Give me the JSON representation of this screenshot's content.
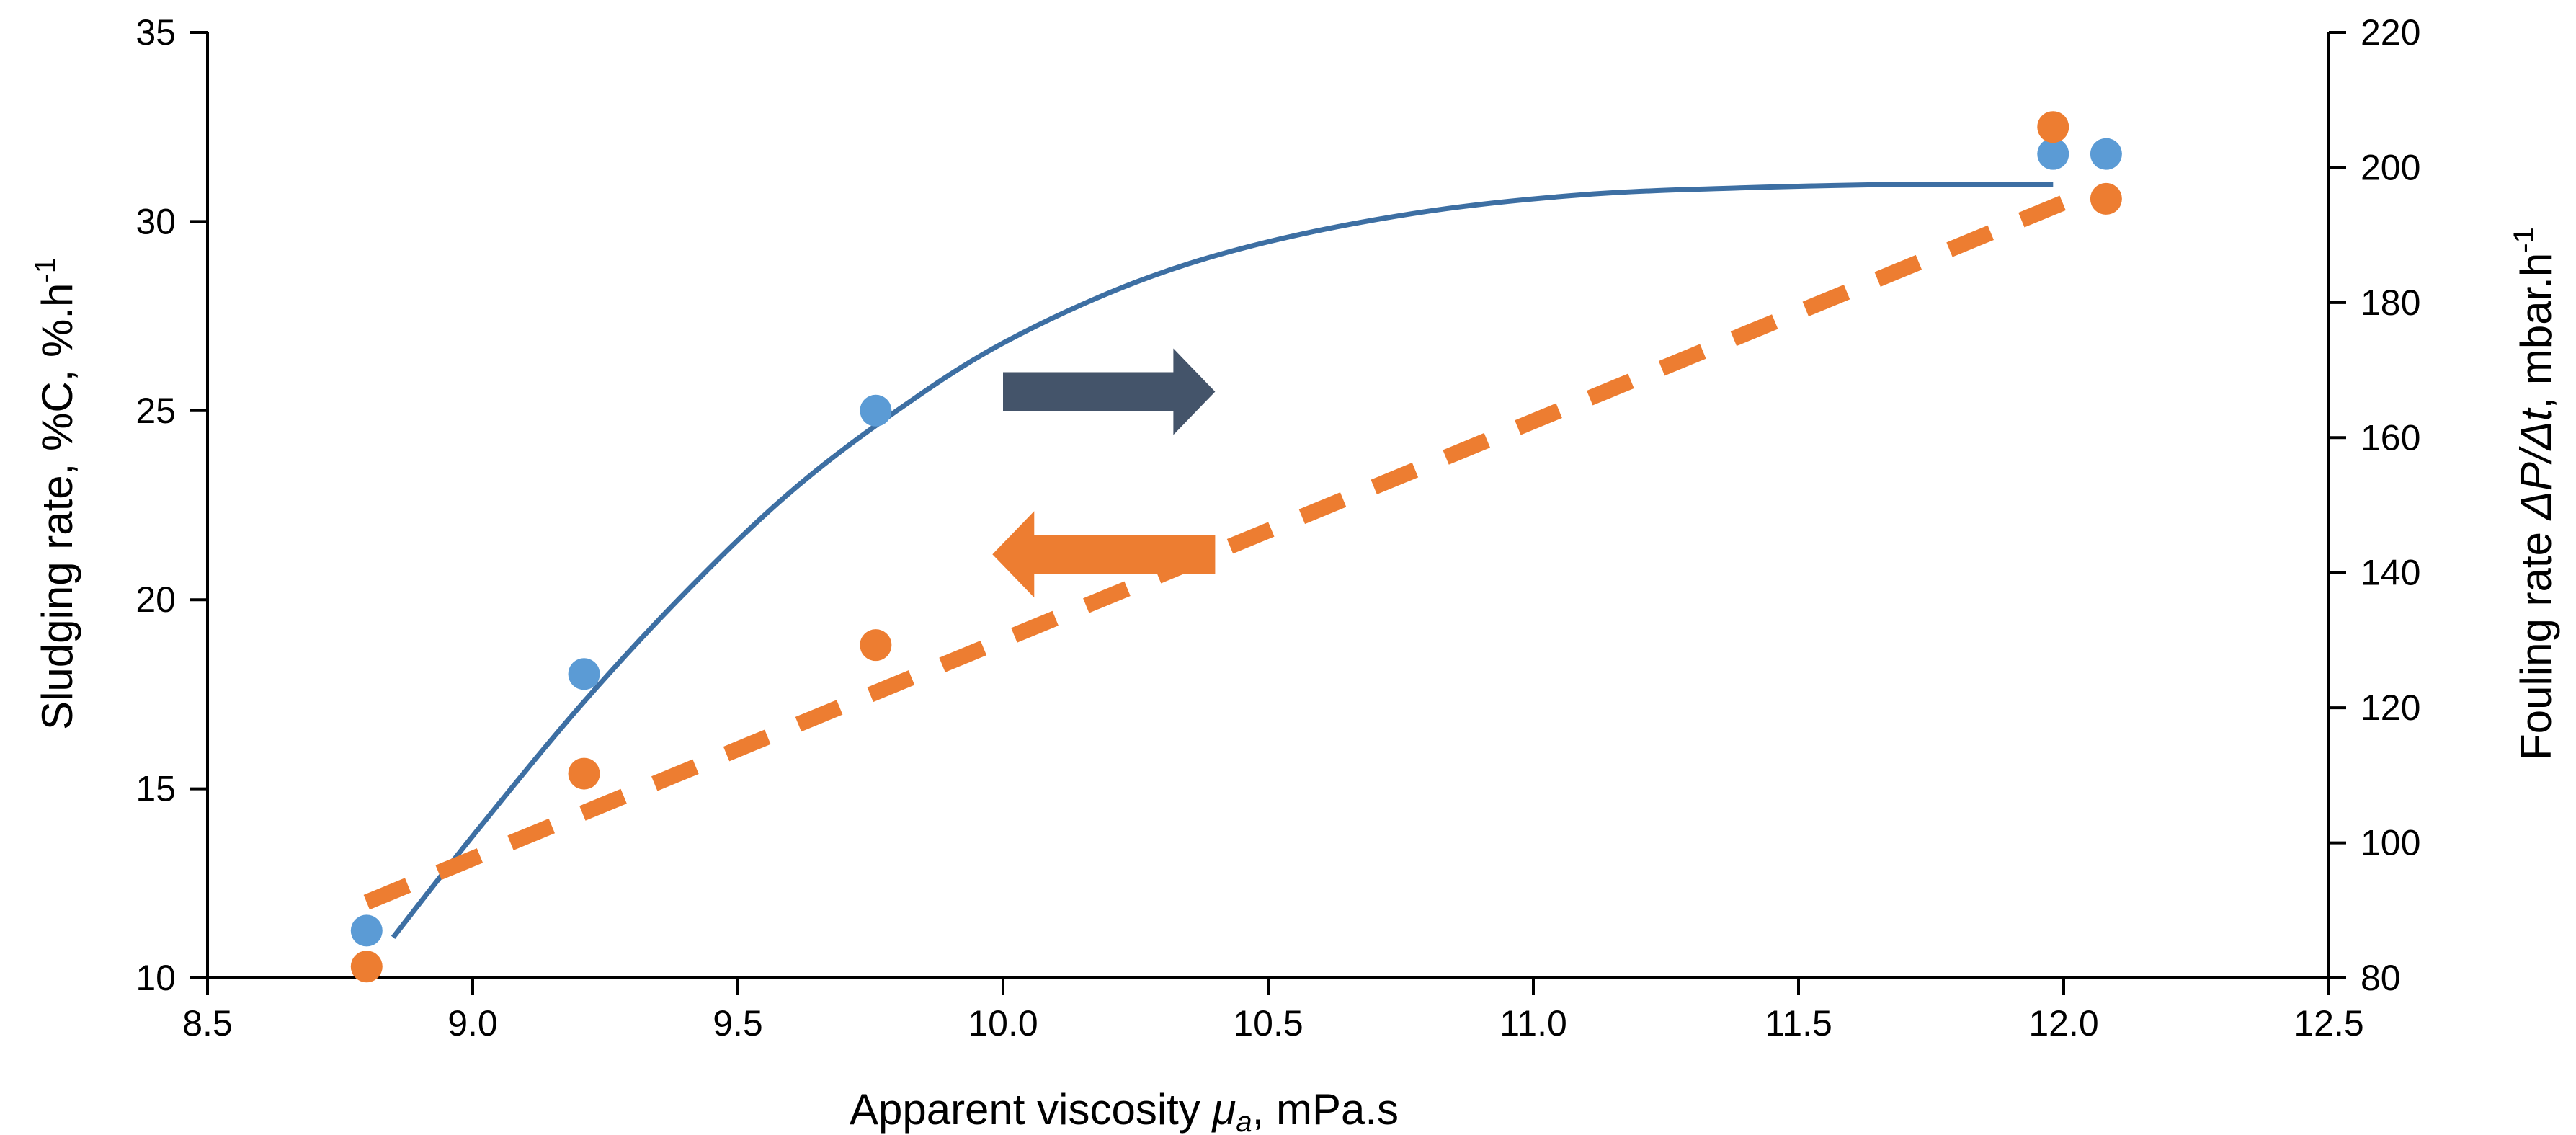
{
  "chart_data": {
    "type": "scatter",
    "title": "",
    "xlabel": {
      "prefix": "Apparent viscosity ",
      "symbol": "μ",
      "subscript": "a",
      "suffix": ", mPa.s"
    },
    "ylabel_left": {
      "text": "Sludging rate, %C, %.h",
      "superscript": "-1"
    },
    "ylabel_right": {
      "prefix": "Fouling rate ",
      "symbol": "ΔP/Δt",
      "suffix": ", mbar.h",
      "superscript": "-1"
    },
    "xlim": [
      8.5,
      12.5
    ],
    "ylim_left": [
      10,
      35
    ],
    "ylim_right": [
      80,
      220
    ],
    "x_ticks": [
      "8.5",
      "9.0",
      "9.5",
      "10.0",
      "10.5",
      "11.0",
      "11.5",
      "12.0",
      "12.5"
    ],
    "y_left_ticks": [
      "10",
      "15",
      "20",
      "25",
      "30",
      "35"
    ],
    "y_right_ticks": [
      "80",
      "100",
      "120",
      "140",
      "160",
      "180",
      "200",
      "220"
    ],
    "grid": false,
    "series": [
      {
        "name": "Fouling rate",
        "axis": "right",
        "color": "#5B9BD5",
        "x": [
          8.8,
          9.21,
          9.76,
          11.98,
          12.08
        ],
        "y": [
          87,
          125,
          164,
          202,
          202
        ]
      },
      {
        "name": "Sludging rate",
        "axis": "left",
        "color": "#ED7D31",
        "x": [
          8.8,
          9.21,
          9.76,
          11.98,
          12.08
        ],
        "y": [
          10.3,
          15.4,
          18.8,
          32.5,
          30.6
        ]
      }
    ],
    "trendlines": [
      {
        "name": "Fouling rate trend",
        "axis": "right",
        "style": "solid",
        "color": "#3D6FA3",
        "x": [
          8.85,
          9.0,
          9.2,
          9.4,
          9.6,
          9.8,
          10.0,
          10.25,
          10.5,
          10.8,
          11.1,
          11.4,
          11.7,
          11.98
        ],
        "y": [
          86,
          101,
          120,
          137,
          152,
          164,
          174,
          183,
          189,
          193.5,
          196,
          197,
          197.5,
          197.5
        ]
      },
      {
        "name": "Sludging rate trend",
        "axis": "left",
        "style": "dashed",
        "color": "#ED7D31",
        "x": [
          8.8,
          12.0
        ],
        "y": [
          12.0,
          30.5
        ]
      }
    ],
    "annotations": [
      {
        "name": "right-axis-arrow",
        "direction": "right",
        "color": "#44546A",
        "x_from": 10.0,
        "x_to": 10.4,
        "y": 25.5,
        "axis": "left"
      },
      {
        "name": "left-axis-arrow",
        "direction": "left",
        "color": "#ED7D31",
        "x_from": 10.4,
        "x_to": 9.98,
        "y": 21.2,
        "axis": "left"
      }
    ]
  }
}
